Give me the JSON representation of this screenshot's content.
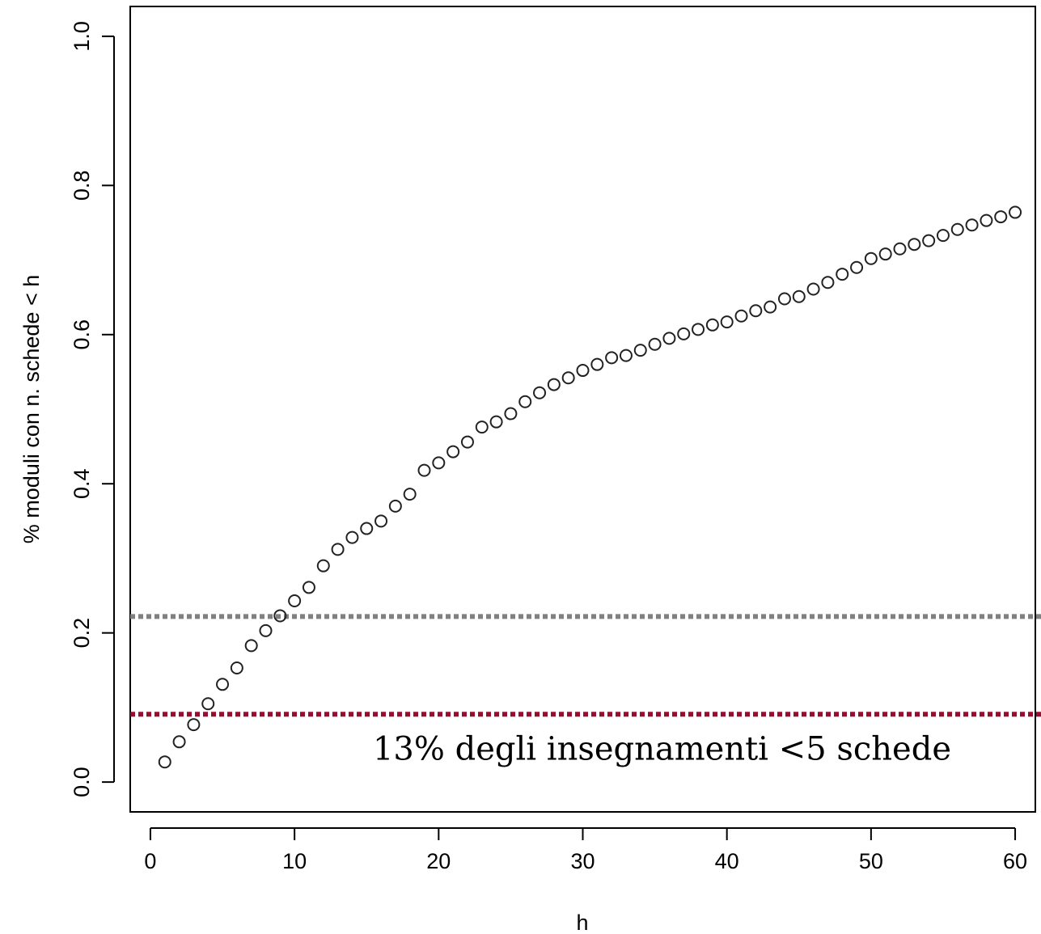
{
  "chart_data": {
    "type": "scatter",
    "xlabel": "h",
    "ylabel": "% moduli con n. schede < h",
    "xlim": [
      -1.4,
      61.4
    ],
    "ylim": [
      -0.04,
      1.04
    ],
    "xticks": [
      0,
      10,
      20,
      30,
      40,
      50,
      60
    ],
    "yticks": [
      "0.0",
      "0.2",
      "0.4",
      "0.6",
      "0.8",
      "1.0"
    ],
    "grid": false,
    "series": [
      {
        "marker": "open-circle",
        "color": "#222222",
        "x": [
          1,
          2,
          3,
          4,
          5,
          6,
          7,
          8,
          9,
          10,
          11,
          12,
          13,
          14,
          15,
          16,
          17,
          18,
          19,
          20,
          21,
          22,
          23,
          24,
          25,
          26,
          27,
          28,
          29,
          30,
          31,
          32,
          33,
          34,
          35,
          36,
          37,
          38,
          39,
          40,
          41,
          42,
          43,
          44,
          45,
          46,
          47,
          48,
          49,
          50,
          51,
          52,
          53,
          54,
          55,
          56,
          57,
          58,
          59,
          60
        ],
        "y": [
          0.027,
          0.054,
          0.077,
          0.105,
          0.131,
          0.153,
          0.183,
          0.203,
          0.223,
          0.243,
          0.261,
          0.29,
          0.312,
          0.328,
          0.34,
          0.35,
          0.37,
          0.386,
          0.418,
          0.428,
          0.443,
          0.456,
          0.476,
          0.483,
          0.494,
          0.51,
          0.522,
          0.533,
          0.542,
          0.552,
          0.56,
          0.569,
          0.572,
          0.579,
          0.587,
          0.595,
          0.601,
          0.607,
          0.613,
          0.617,
          0.625,
          0.632,
          0.637,
          0.648,
          0.651,
          0.661,
          0.67,
          0.681,
          0.69,
          0.702,
          0.708,
          0.715,
          0.721,
          0.726,
          0.733,
          0.741,
          0.747,
          0.753,
          0.758,
          0.764
        ]
      }
    ],
    "reference_lines": [
      {
        "y": 0.222,
        "color": "#808080",
        "style": "dotted"
      },
      {
        "y": 0.091,
        "color": "#9b0d2e",
        "style": "dotted"
      }
    ],
    "annotations": [
      {
        "text": "13% degli insegnamenti <5 schede",
        "x": 35.5,
        "y": 0.03
      }
    ]
  }
}
